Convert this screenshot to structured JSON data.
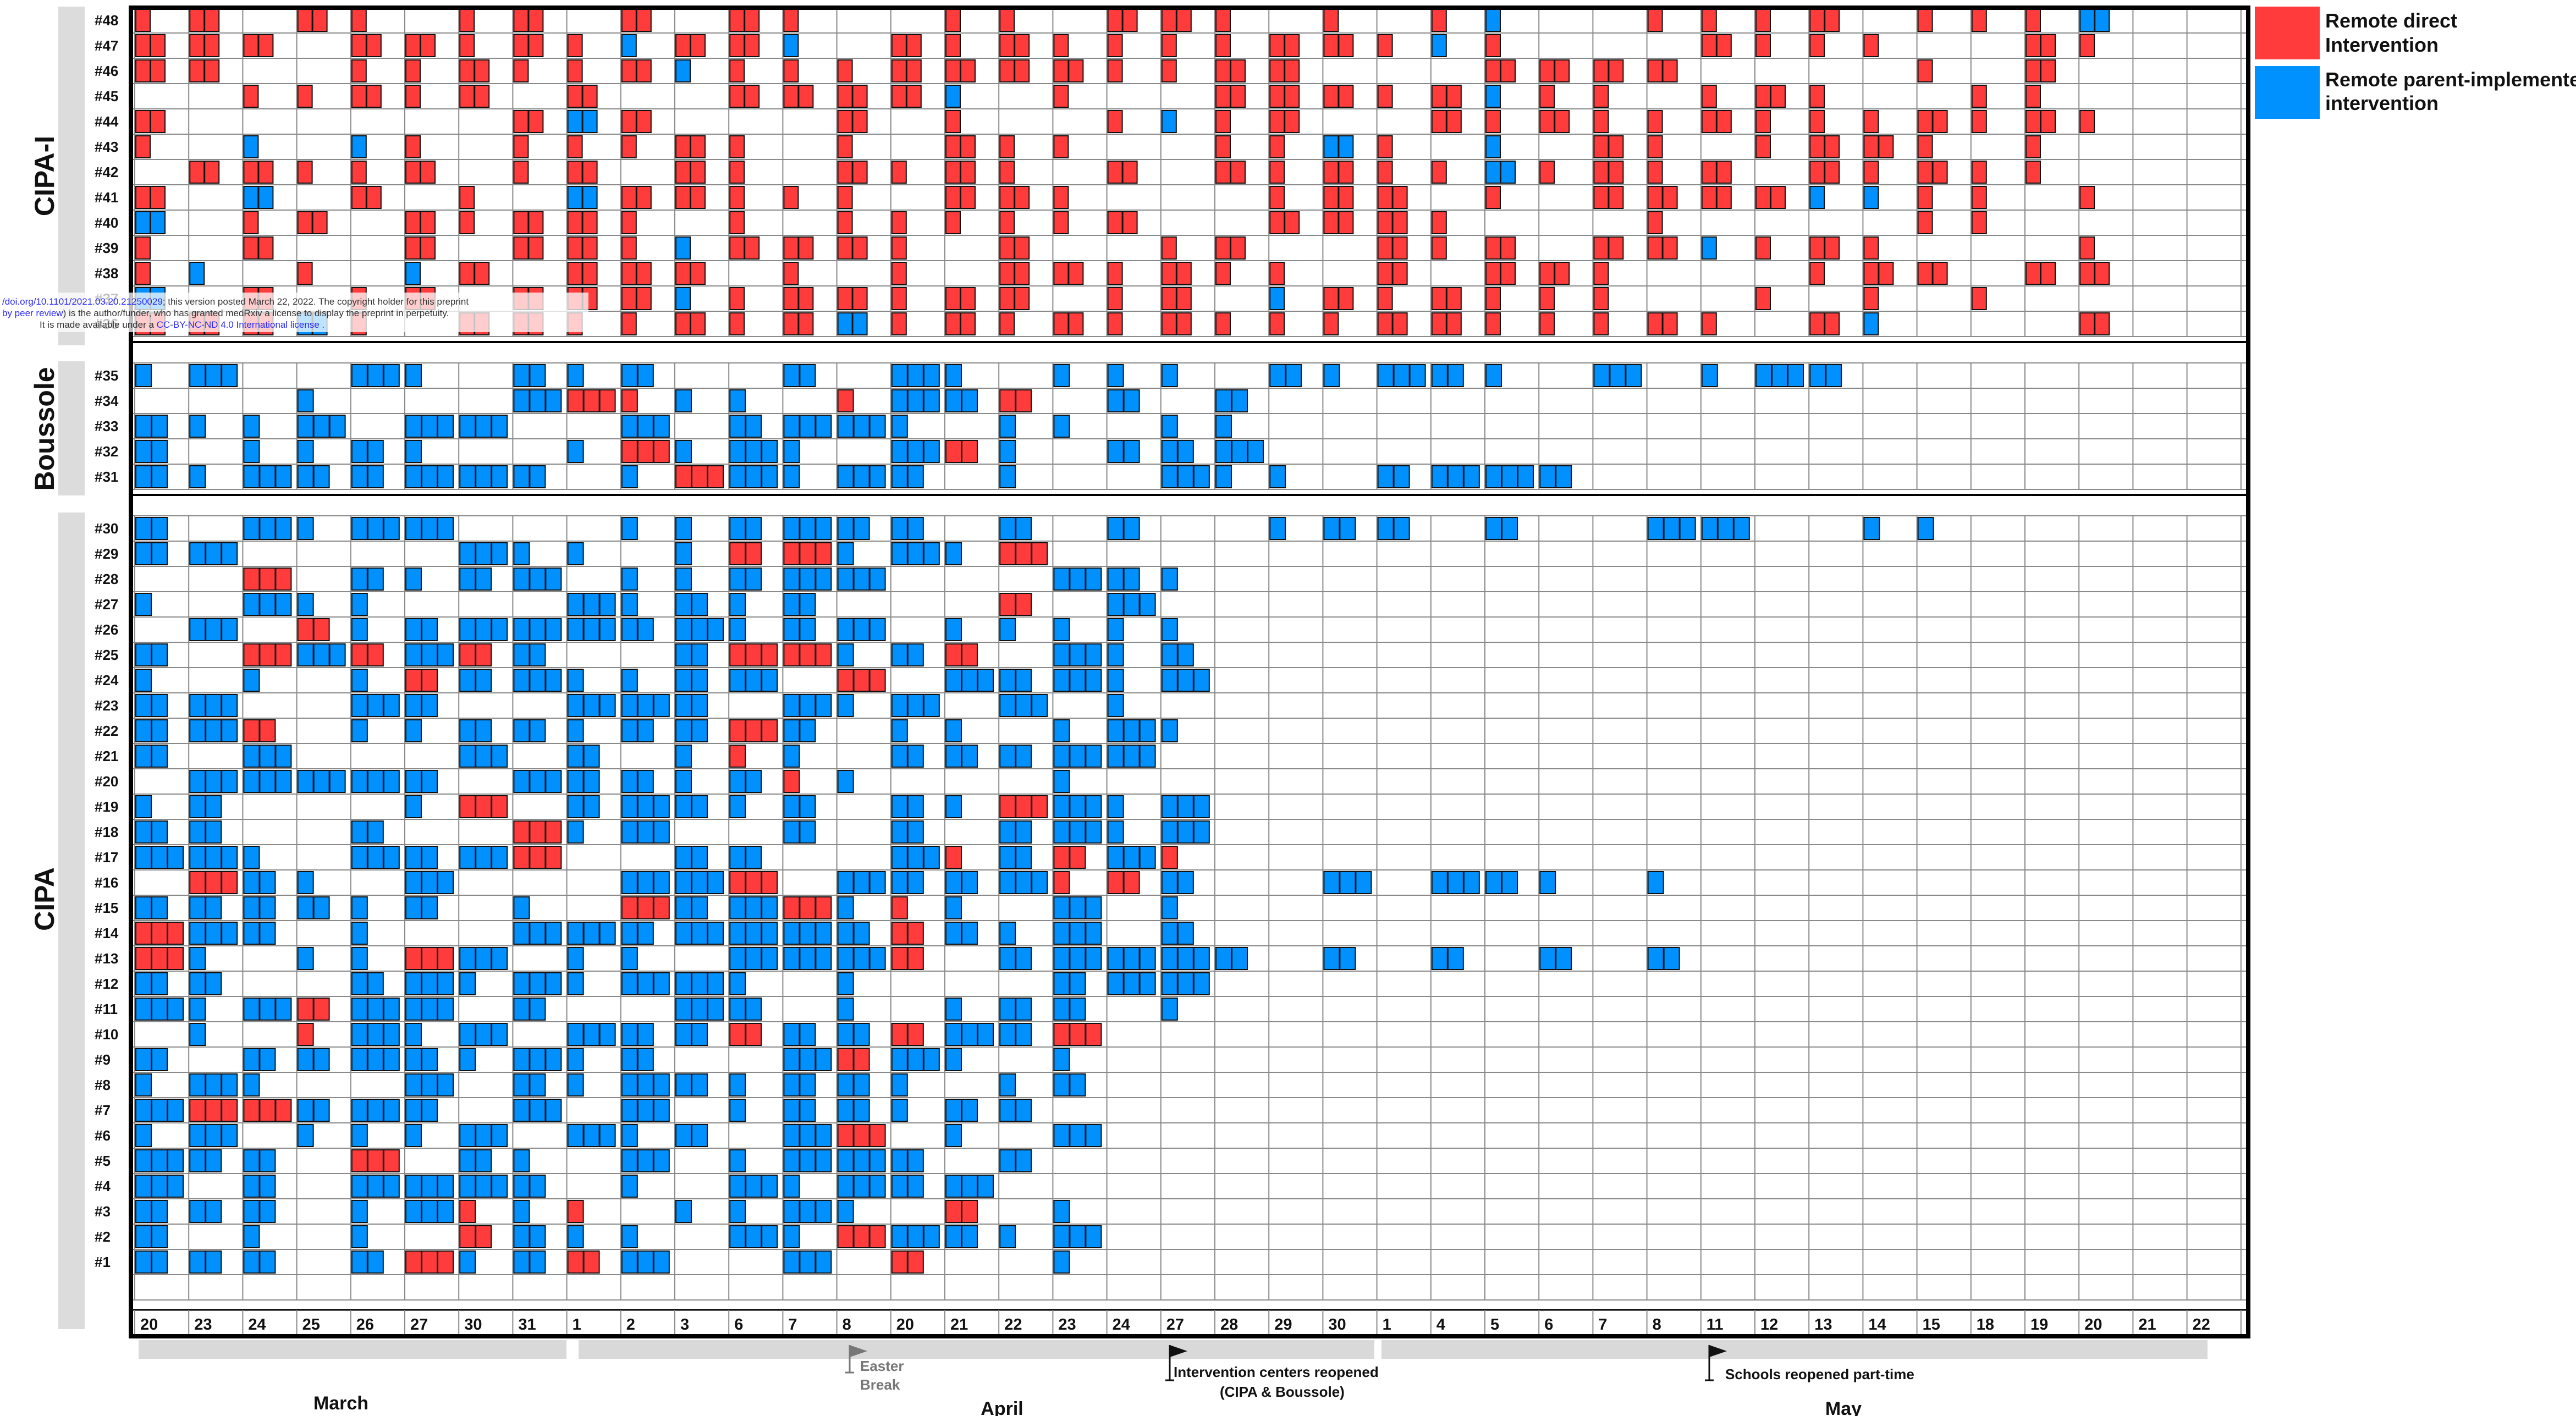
{
  "legend": {
    "remote_direct": {
      "label_line1": "Remote direct",
      "label_line2": "Intervention",
      "color": "#ff3b3b"
    },
    "remote_parent": {
      "label_line1": "Remote parent-implemented",
      "label_line2": "intervention",
      "color": "#0091ff"
    }
  },
  "groups": [
    {
      "label": "CIPA-I",
      "rows": [
        "#48",
        "#47",
        "#46",
        "#45",
        "#44",
        "#43",
        "#42",
        "#41",
        "#40",
        "#39",
        "#38",
        "#37",
        "#36"
      ]
    },
    {
      "label": "Boussole",
      "rows": [
        "#35",
        "#34",
        "#33",
        "#32",
        "#31"
      ]
    },
    {
      "label": "CIPA",
      "rows": [
        "#30",
        "#29",
        "#28",
        "#27",
        "#26",
        "#25",
        "#24",
        "#23",
        "#22",
        "#21",
        "#20",
        "#19",
        "#18",
        "#17",
        "#16",
        "#15",
        "#14",
        "#13",
        "#12",
        "#11",
        "#10",
        "#9",
        "#8",
        "#7",
        "#6",
        "#5",
        "#4",
        "#3",
        "#2",
        "#1"
      ]
    }
  ],
  "x_ticks": [
    "20",
    "23",
    "24",
    "25",
    "26",
    "27",
    "30",
    "31",
    "1",
    "2",
    "3",
    "6",
    "7",
    "8",
    "20",
    "21",
    "22",
    "23",
    "24",
    "27",
    "28",
    "29",
    "30",
    "1",
    "4",
    "5",
    "6",
    "7",
    "8",
    "11",
    "12",
    "13",
    "14",
    "15",
    "18",
    "19",
    "20",
    "21",
    "22"
  ],
  "months": [
    "March",
    "April",
    "May"
  ],
  "annotations": {
    "easter_line1": "Easter",
    "easter_line2": "Break",
    "reopen_line1": "Intervention centers reopened",
    "reopen_line2": "(CIPA & Boussole)",
    "schools": "Schools reopened part-time"
  },
  "preprint_note": {
    "line1_link": "/doi.org/10.1101/2021.03.20.21250029",
    "line1_text": "; this version posted March 22, 2022. The copyright holder for this preprint",
    "line2_link": "by peer review",
    "line2_text": ") is the author/funder, who has granted medRxiv a license to display the preprint in perpetuity.",
    "line3_text": "It is made available under a ",
    "line3_link": "CC-BY-NC-ND 4.0 International license",
    "line3_end": " ."
  },
  "chart_data": {
    "type": "heatmap",
    "title": "",
    "xlabel": "",
    "ylabel": "",
    "series": [
      {
        "name": "Remote direct Intervention",
        "color": "#ff3b3b"
      },
      {
        "name": "Remote parent-implemented intervention",
        "color": "#0091ff"
      }
    ],
    "x_dates": [
      "20",
      "23",
      "24",
      "25",
      "26",
      "27",
      "30",
      "31",
      "1",
      "2",
      "3",
      "6",
      "7",
      "8",
      "20",
      "21",
      "22",
      "23",
      "24",
      "27",
      "28",
      "29",
      "30",
      "1",
      "4",
      "5",
      "6",
      "7",
      "8",
      "11",
      "12",
      "13",
      "14",
      "15",
      "18",
      "19",
      "20",
      "21",
      "22"
    ],
    "x_months": [
      "March",
      "March",
      "March",
      "March",
      "March",
      "March",
      "March",
      "March",
      "April",
      "April",
      "April",
      "April",
      "April",
      "April",
      "April",
      "April",
      "April",
      "April",
      "April",
      "April",
      "April",
      "April",
      "April",
      "May",
      "May",
      "May",
      "May",
      "May",
      "May",
      "May",
      "May",
      "May",
      "May",
      "May",
      "May",
      "May",
      "May",
      "May",
      "May"
    ],
    "sessions_estimated": [
      {
        "participant": "#48",
        "type": "Remote direct Intervention",
        "days": [
          "20",
          "23",
          "24",
          "25",
          "26",
          "27",
          "30",
          "31",
          "1",
          "2",
          "3",
          "6",
          "7",
          "8",
          "20",
          "21",
          "22",
          "23",
          "24",
          "27",
          "28",
          "29",
          "30",
          "1",
          "4",
          "5",
          "6",
          "7",
          "8",
          "11",
          "12",
          "13",
          "15",
          "18"
        ]
      },
      {
        "participant": "#41",
        "type": "Remote parent-implemented intervention",
        "days": [
          "20",
          "23",
          "25",
          "26",
          "3",
          "8",
          "22"
        ]
      },
      {
        "participant": "#41",
        "type": "Remote direct Intervention",
        "days": [
          "24",
          "27",
          "30",
          "31",
          "1",
          "2",
          "6",
          "7",
          "20",
          "21",
          "23",
          "24",
          "27",
          "28",
          "29",
          "30",
          "1",
          "4",
          "5",
          "6",
          "7",
          "8",
          "11",
          "15",
          "21"
        ]
      },
      {
        "participant": "#35",
        "type": "Remote parent-implemented intervention",
        "days": [
          "20",
          "23",
          "24",
          "25",
          "26",
          "27",
          "30",
          "31",
          "1",
          "2",
          "3",
          "6",
          "7",
          "8",
          "20",
          "21",
          "22",
          "24",
          "27",
          "28",
          "29",
          "30",
          "1",
          "4",
          "5",
          "6",
          "7",
          "8",
          "11",
          "12"
        ]
      },
      {
        "participant": "#31",
        "type": "Remote parent-implemented intervention",
        "days": [
          "23",
          "24",
          "25",
          "26",
          "27",
          "30",
          "31",
          "1",
          "2",
          "3",
          "6",
          "7",
          "8",
          "20",
          "21",
          "22",
          "23",
          "24",
          "27",
          "28",
          "29",
          "30",
          "1",
          "4",
          "5",
          "6"
        ]
      },
      {
        "participant": "#30",
        "type": "Remote parent-implemented intervention",
        "days": [
          "20",
          "23",
          "24",
          "25",
          "26",
          "27",
          "30",
          "31",
          "1",
          "2",
          "3",
          "6",
          "7",
          "8",
          "20",
          "21",
          "22",
          "23",
          "28",
          "29",
          "30",
          "1",
          "4",
          "5",
          "6",
          "7",
          "8",
          "11",
          "12",
          "13",
          "14"
        ]
      },
      {
        "participant": "#16",
        "type": "Remote parent-implemented intervention",
        "days": [
          "20",
          "23",
          "24",
          "25",
          "26",
          "27",
          "30",
          "31",
          "1",
          "2",
          "3",
          "6",
          "7",
          "8",
          "20",
          "21",
          "22",
          "23",
          "24",
          "27",
          "28",
          "29",
          "30",
          "1",
          "4",
          "5",
          "6",
          "7",
          "8"
        ]
      },
      {
        "participant": "#5",
        "type": "Remote direct Intervention",
        "days": [
          "20",
          "23",
          "25",
          "27",
          "30",
          "31",
          "3",
          "6",
          "7",
          "8",
          "20",
          "21",
          "22"
        ]
      },
      {
        "participant": "#6",
        "type": "Remote direct Intervention",
        "days": [
          "7",
          "8",
          "20",
          "21",
          "22",
          "23"
        ]
      }
    ],
    "legend_position": "top-right",
    "grid": true
  }
}
